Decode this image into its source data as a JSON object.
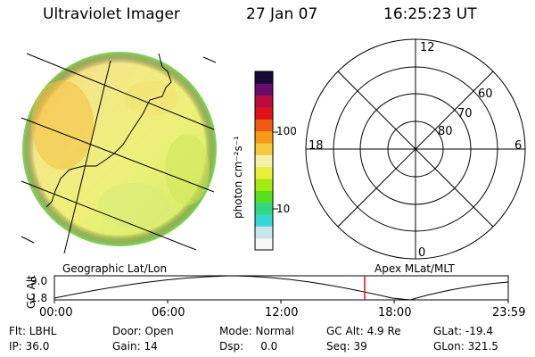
{
  "header": {
    "title": "Ultraviolet Imager",
    "date": "27 Jan 07",
    "time": "16:25:23 UT"
  },
  "colorbar": {
    "unit_label": "photon cm⁻²s⁻¹",
    "tick_100": "100",
    "tick_10": "10",
    "colors": [
      "#f5f7f5",
      "#c8e4ec",
      "#38d6d2",
      "#34d884",
      "#58e020",
      "#a4ec10",
      "#e8f03c",
      "#f6f0a8",
      "#f6c840",
      "#f49a14",
      "#ee5a12",
      "#e01218",
      "#b80c3c",
      "#6c0c6a",
      "#1a0a3a"
    ]
  },
  "polar": {
    "labels": {
      "top": "12",
      "left": "18",
      "right": "6",
      "bottom": "0"
    },
    "lat_labels": [
      "60",
      "70",
      "80"
    ]
  },
  "timeline": {
    "left_label": "Geographic Lat/Lon",
    "right_label": "Apex MLat/MLT",
    "axis_label": "GC Alt",
    "y_max": "9.0",
    "y_min": "1.8",
    "ticks": [
      "00:00",
      "06:00",
      "12:00",
      "18:00",
      "23:59"
    ],
    "marker_color": "#e01010"
  },
  "info": {
    "filter": "Flt: LBHL",
    "ip": "IP: 36.0",
    "door": "Door: Open",
    "gain": "Gain: 14",
    "mode": "Mode: Normal",
    "dsp": "Dsp:     0.0",
    "gc_alt": "GC Alt: 4.9 Re",
    "seq": "Seq: 39",
    "glat": "GLat: -19.4",
    "glon": "GLon: 321.5"
  }
}
